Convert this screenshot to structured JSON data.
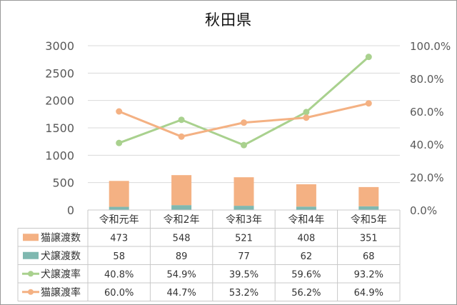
{
  "chart_data": {
    "type": "bar",
    "title": "秋田県",
    "categories": [
      "令和元年",
      "令和2年",
      "令和3年",
      "令和4年",
      "令和5年"
    ],
    "y_left": {
      "min": 0,
      "max": 3000,
      "ticks": [
        "0",
        "500",
        "1000",
        "1500",
        "2000",
        "2500",
        "3000"
      ]
    },
    "y_right": {
      "min": 0,
      "max": 1.0,
      "ticks": [
        "0.0%",
        "20.0%",
        "40.0%",
        "60.0%",
        "80.0%",
        "100.0%"
      ]
    },
    "grid": true,
    "legend": "data-table",
    "series": [
      {
        "name": "猫譲渡数",
        "kind": "bar-stacked",
        "axis": "left",
        "color": "#F4B183",
        "values": [
          473,
          548,
          521,
          408,
          351
        ],
        "labels": [
          "473",
          "548",
          "521",
          "408",
          "351"
        ]
      },
      {
        "name": "犬譲渡数",
        "kind": "bar-stacked",
        "axis": "left",
        "color": "#7FB8B0",
        "values": [
          58,
          89,
          77,
          62,
          68
        ],
        "labels": [
          "58",
          "89",
          "77",
          "62",
          "68"
        ]
      },
      {
        "name": "犬譲渡率",
        "kind": "line",
        "axis": "right",
        "color": "#A9D18E",
        "values": [
          0.408,
          0.549,
          0.395,
          0.596,
          0.932
        ],
        "labels": [
          "40.8%",
          "54.9%",
          "39.5%",
          "59.6%",
          "93.2%"
        ]
      },
      {
        "name": "猫譲渡率",
        "kind": "line",
        "axis": "right",
        "color": "#F4B183",
        "values": [
          0.6,
          0.447,
          0.532,
          0.562,
          0.649
        ],
        "labels": [
          "60.0%",
          "44.7%",
          "53.2%",
          "56.2%",
          "64.9%"
        ]
      }
    ]
  }
}
